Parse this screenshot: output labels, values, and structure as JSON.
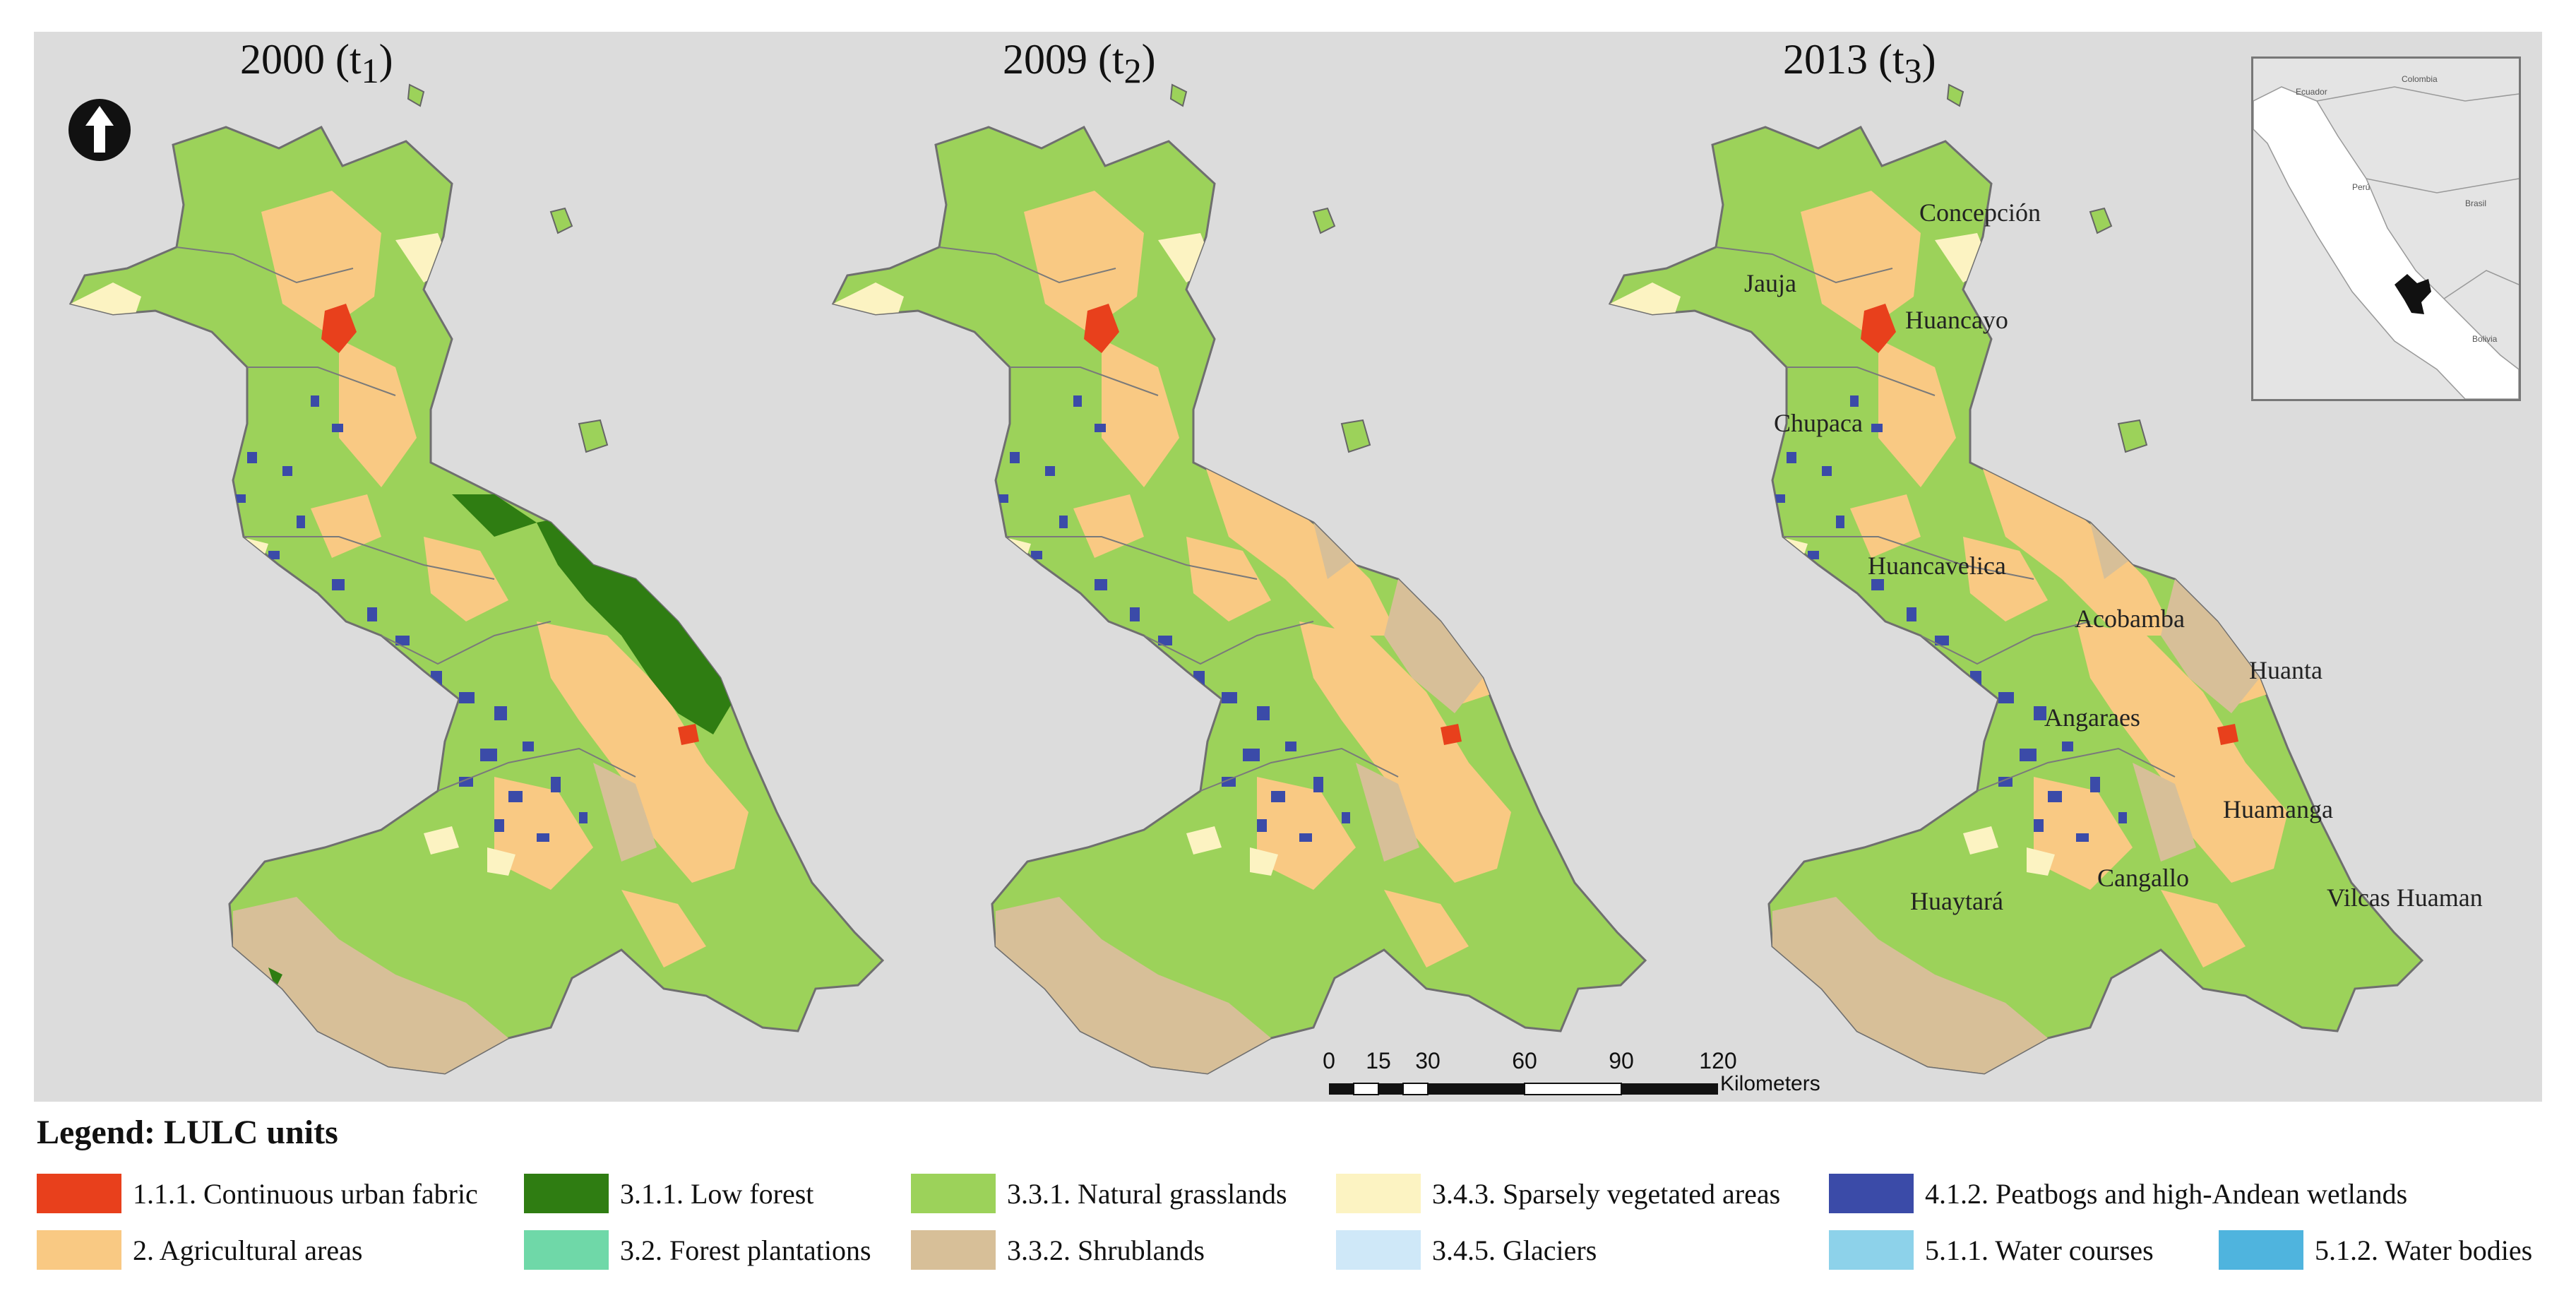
{
  "panels": [
    {
      "year": "2000",
      "sub": "1"
    },
    {
      "year": "2009",
      "sub": "2"
    },
    {
      "year": "2013",
      "sub": "3"
    }
  ],
  "places": [
    "Concepción",
    "Jauja",
    "Huancayo",
    "Chupaca",
    "Huancavelica",
    "Acobamba",
    "Huanta",
    "Angaraes",
    "Huamanga",
    "Cangallo",
    "Huaytará",
    "Vilcas Huaman"
  ],
  "inset_labels": [
    "Ecuador",
    "Colombia",
    "Perú",
    "Brasil",
    "Bolivia"
  ],
  "scale": {
    "ticks": [
      "0",
      "15",
      "30",
      "60",
      "90",
      "120"
    ],
    "unit": "Kilometers"
  },
  "legend": {
    "title": "Legend: LULC units",
    "items": [
      {
        "label": "1.1.1. Continuous urban fabric",
        "color": "#e8401c"
      },
      {
        "label": "2. Agricultural areas",
        "color": "#f9c983"
      },
      {
        "label": "3.1.1. Low forest",
        "color": "#2f7d12"
      },
      {
        "label": "3.2. Forest plantations",
        "color": "#6fd8a8"
      },
      {
        "label": "3.3.1. Natural grasslands",
        "color": "#9cd25a"
      },
      {
        "label": "3.3.2. Shrublands",
        "color": "#d7bf98"
      },
      {
        "label": "3.4.3. Sparsely vegetated areas",
        "color": "#fcf3c2"
      },
      {
        "label": "3.4.5. Glaciers",
        "color": "#cfe8f8"
      },
      {
        "label": "4.1.2. Peatbogs and high-Andean wetlands",
        "color": "#3b4ba8"
      },
      {
        "label": "5.1.1. Water courses",
        "color": "#8dd2ea"
      },
      {
        "label": "5.1.2. Water bodies",
        "color": "#4fb4de"
      }
    ]
  }
}
